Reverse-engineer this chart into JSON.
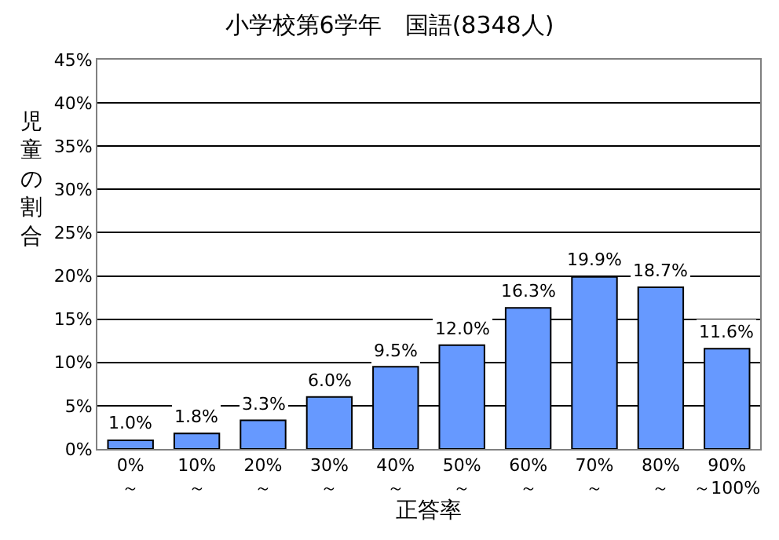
{
  "chart_data": {
    "type": "bar",
    "title": "小学校第6学年　国語(8348人)",
    "xlabel": "正答率",
    "ylabel": "児童の割合",
    "categories": [
      "0%\n～",
      "10%\n～",
      "20%\n～",
      "30%\n～",
      "40%\n～",
      "50%\n～",
      "60%\n～",
      "70%\n～",
      "80%\n～",
      "90%\n～100%"
    ],
    "values": [
      1.0,
      1.8,
      3.3,
      6.0,
      9.5,
      12.0,
      16.3,
      19.9,
      18.7,
      11.6
    ],
    "value_labels": [
      "1.0%",
      "1.8%",
      "3.3%",
      "6.0%",
      "9.5%",
      "12.0%",
      "16.3%",
      "19.9%",
      "18.7%",
      "11.6%"
    ],
    "color": "#6699ff",
    "ylim": [
      0,
      45
    ],
    "yticks": [
      {
        "value": 0,
        "label": "0%"
      },
      {
        "value": 5,
        "label": "5%"
      },
      {
        "value": 10,
        "label": "10%"
      },
      {
        "value": 15,
        "label": "15%"
      },
      {
        "value": 20,
        "label": "20%"
      },
      {
        "value": 25,
        "label": "25%"
      },
      {
        "value": 30,
        "label": "30%"
      },
      {
        "value": 35,
        "label": "35%"
      },
      {
        "value": 40,
        "label": "40%"
      },
      {
        "value": 45,
        "label": "45%"
      }
    ],
    "grid": "y",
    "legend": false
  }
}
